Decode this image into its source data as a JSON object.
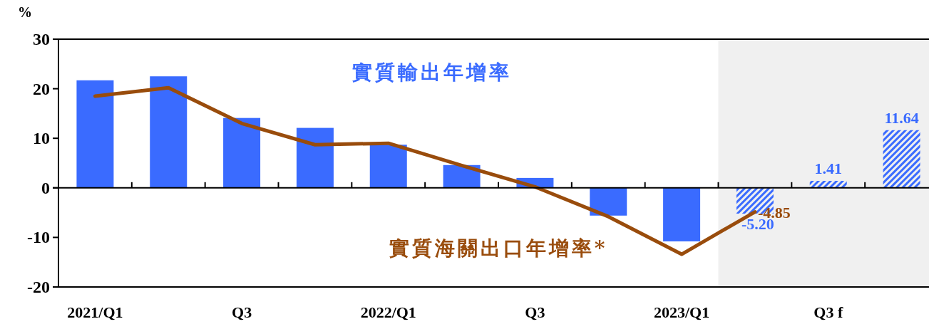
{
  "chart_data": {
    "type": "bar",
    "ylabel": "%",
    "categories": [
      "2021/Q1",
      null,
      "Q3",
      null,
      "2022/Q1",
      null,
      "Q3",
      null,
      "2023/Q1",
      null,
      "Q3 f",
      null
    ],
    "series": [
      {
        "name": "實質輸出年增率",
        "color": "#3a6bff",
        "values": [
          21.7,
          22.5,
          14.1,
          12.1,
          8.7,
          4.6,
          2.0,
          -5.6,
          -10.8,
          -5.2,
          1.41,
          11.64
        ],
        "value_labels": [
          null,
          null,
          null,
          null,
          null,
          null,
          null,
          null,
          null,
          "-5.20",
          "1.41",
          "11.64"
        ]
      },
      {
        "name": "實質海關出口年增率*",
        "type": "line",
        "color": "#994c0c",
        "values": [
          18.5,
          20.2,
          13.0,
          8.7,
          9.0,
          4.5,
          0.2,
          -5.8,
          -13.4,
          -4.85,
          null,
          null
        ],
        "value_labels": [
          null,
          null,
          null,
          null,
          null,
          null,
          null,
          null,
          null,
          "-4.85",
          null,
          null
        ]
      }
    ],
    "ylim": [
      -20,
      30
    ],
    "yticks": [
      -20,
      -10,
      0,
      10,
      20,
      30
    ]
  }
}
